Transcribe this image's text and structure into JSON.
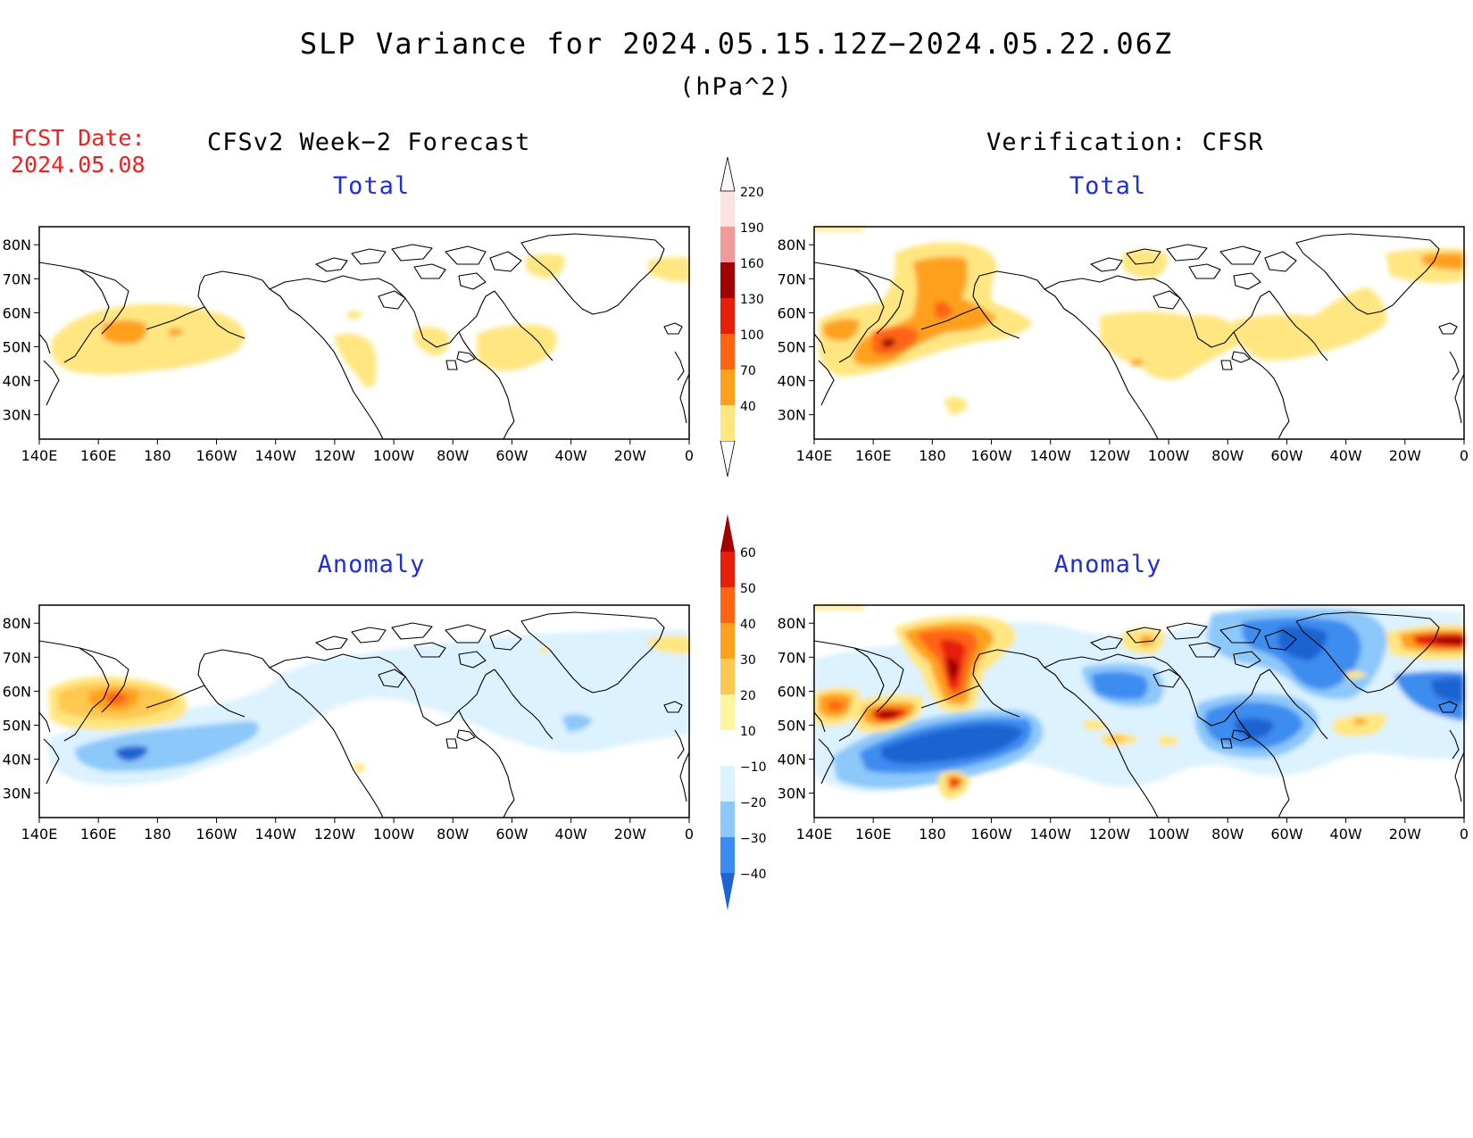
{
  "figure": {
    "title": "SLP Variance for 2024.05.15.12Z−2024.05.22.06Z",
    "units": "(hPa^2)",
    "fcst_label": "FCST Date:",
    "fcst_date": "2024.05.08",
    "left_column_title": "CFSv2 Week−2 Forecast",
    "right_column_title": "Verification: CFSR"
  },
  "panels": {
    "top_left_title": "Total",
    "top_right_title": "Total",
    "bottom_left_title": "Anomaly",
    "bottom_right_title": "Anomaly"
  },
  "lat_labels": [
    "80N",
    "70N",
    "60N",
    "50N",
    "40N",
    "30N"
  ],
  "lon_labels": [
    "140E",
    "160E",
    "180",
    "160W",
    "140W",
    "120W",
    "100W",
    "80W",
    "60W",
    "40W",
    "20W",
    "0"
  ],
  "colorbar_total": {
    "levels": [
      "40",
      "70",
      "100",
      "130",
      "160",
      "190",
      "220"
    ],
    "colors": [
      "#ffe680",
      "#ffa01e",
      "#ff6414",
      "#e61e0a",
      "#a00000",
      "#f09a9a",
      "#fde2e2"
    ]
  },
  "colorbar_anomaly": {
    "levels": [
      "−40",
      "−30",
      "−20",
      "−10",
      "10",
      "20",
      "30",
      "40",
      "50",
      "60"
    ],
    "colors": [
      "#1e64d2",
      "#3c8cf0",
      "#8cc8fa",
      "#dcf2ff",
      "#ffffff",
      "#fff5a0",
      "#ffc850",
      "#ffa01e",
      "#ff6414",
      "#e61e0a",
      "#a00000"
    ]
  }
}
